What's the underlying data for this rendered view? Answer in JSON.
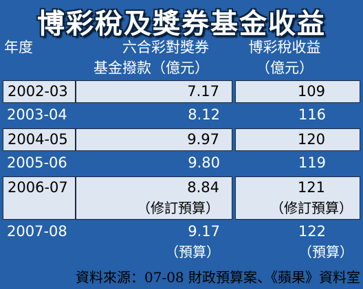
{
  "title": "博彩稅及獎券基金收益",
  "table": {
    "header": [
      [
        "年度"
      ],
      [
        "六合彩對獎券",
        "基金撥款（億元）"
      ],
      [
        "博彩稅收益",
        "（億元）"
      ]
    ],
    "rows": [
      {
        "year": "2002-03",
        "fund": [
          "7.17"
        ],
        "tax": [
          "109"
        ]
      },
      {
        "year": "2003-04",
        "fund": [
          "8.12"
        ],
        "tax": [
          "116"
        ]
      },
      {
        "year": "2004-05",
        "fund": [
          "9.97"
        ],
        "tax": [
          "120"
        ]
      },
      {
        "year": "2005-06",
        "fund": [
          "9.80"
        ],
        "tax": [
          "119"
        ]
      },
      {
        "year": "2006-07",
        "fund": [
          "8.84",
          "（修訂預算）"
        ],
        "tax": [
          "121",
          "（修訂預算）"
        ]
      },
      {
        "year": "2007-08",
        "fund": [
          "9.17",
          "（預算）"
        ],
        "tax": [
          "122",
          "（預算）"
        ]
      }
    ]
  },
  "source": "資料來源：07-08 財政預算案、《蘋果》資料室"
}
